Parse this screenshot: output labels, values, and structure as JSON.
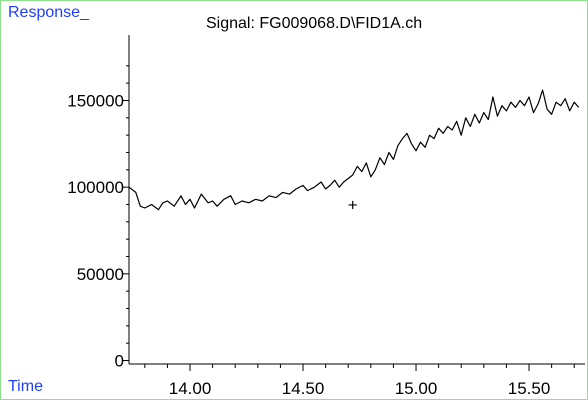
{
  "chart_data": {
    "type": "line",
    "title": "Signal: FG009068.D\\FID1A.ch",
    "ylabel": "Response_",
    "xlabel": "Time",
    "xlim": [
      13.73,
      15.73
    ],
    "ylim": [
      -2000,
      182000
    ],
    "x_ticks": [
      "14.00",
      "14.50",
      "15.00",
      "15.50"
    ],
    "x_tick_values": [
      14.0,
      14.5,
      15.0,
      15.5
    ],
    "y_ticks": [
      "0",
      "50000",
      "100000",
      "150000"
    ],
    "y_tick_values": [
      0,
      50000,
      100000,
      150000
    ],
    "grid": false,
    "marker": {
      "symbol": "+",
      "x": 14.72,
      "y": 90000
    },
    "series": [
      {
        "color": "#000000",
        "x": [
          13.73,
          13.76,
          13.78,
          13.8,
          13.83,
          13.86,
          13.88,
          13.9,
          13.93,
          13.96,
          13.98,
          14.0,
          14.02,
          14.05,
          14.08,
          14.1,
          14.12,
          14.15,
          14.18,
          14.2,
          14.23,
          14.26,
          14.29,
          14.32,
          14.35,
          14.38,
          14.41,
          14.44,
          14.47,
          14.5,
          14.52,
          14.55,
          14.58,
          14.6,
          14.62,
          14.64,
          14.66,
          14.68,
          14.7,
          14.72,
          14.74,
          14.76,
          14.78,
          14.8,
          14.82,
          14.84,
          14.86,
          14.88,
          14.9,
          14.92,
          14.94,
          14.96,
          14.98,
          15.0,
          15.02,
          15.04,
          15.06,
          15.08,
          15.1,
          15.12,
          15.14,
          15.16,
          15.18,
          15.2,
          15.22,
          15.24,
          15.26,
          15.28,
          15.3,
          15.32,
          15.34,
          15.36,
          15.38,
          15.4,
          15.42,
          15.44,
          15.46,
          15.48,
          15.5,
          15.52,
          15.54,
          15.56,
          15.58,
          15.6,
          15.62,
          15.64,
          15.66,
          15.68,
          15.7,
          15.72
        ],
        "y": [
          100000,
          97000,
          89000,
          88000,
          90000,
          87000,
          91000,
          92000,
          89000,
          95000,
          90000,
          93000,
          88000,
          96000,
          91000,
          92000,
          89000,
          93000,
          95000,
          90000,
          92000,
          91000,
          93000,
          92000,
          95000,
          94000,
          97000,
          96000,
          99000,
          101000,
          98000,
          100000,
          103000,
          99000,
          101000,
          104000,
          100000,
          103000,
          105000,
          107000,
          112000,
          109000,
          114000,
          106000,
          110000,
          117000,
          113000,
          120000,
          116000,
          124000,
          128000,
          131000,
          125000,
          121000,
          126000,
          123000,
          130000,
          128000,
          134000,
          131000,
          135000,
          133000,
          138000,
          130000,
          140000,
          135000,
          142000,
          137000,
          143000,
          139000,
          152000,
          141000,
          147000,
          144000,
          149000,
          146000,
          150000,
          147000,
          152000,
          143000,
          148000,
          156000,
          145000,
          142000,
          149000,
          147000,
          151000,
          144000,
          149000,
          146000
        ]
      }
    ]
  }
}
